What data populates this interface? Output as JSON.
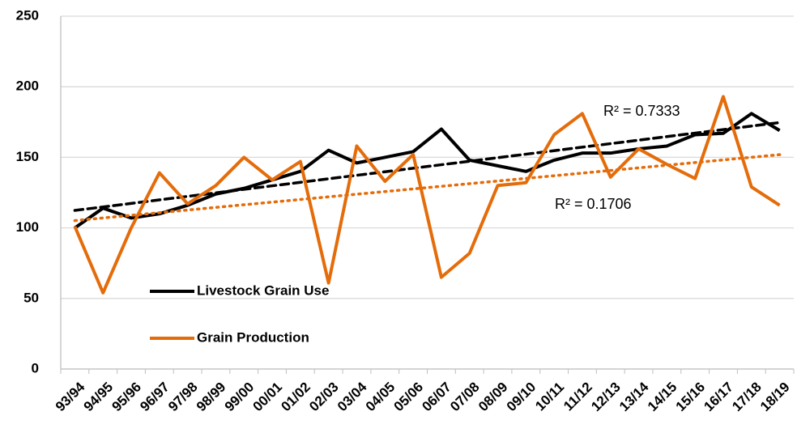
{
  "chart_data": {
    "type": "line",
    "categories": [
      "93/94",
      "94/95",
      "95/96",
      "96/97",
      "97/98",
      "98/99",
      "99/00",
      "00/01",
      "01/02",
      "02/03",
      "03/04",
      "04/05",
      "05/06",
      "06/07",
      "07/08",
      "08/09",
      "09/10",
      "10/11",
      "11/12",
      "12/13",
      "13/14",
      "14/15",
      "15/16",
      "16/17",
      "17/18",
      "18/19"
    ],
    "series": [
      {
        "name": "Livestock Grain Use",
        "color": "#000000",
        "values": [
          100,
          114,
          107,
          110,
          116,
          124,
          128,
          134,
          140,
          155,
          146,
          150,
          154,
          170,
          148,
          144,
          140,
          148,
          153,
          153,
          156,
          158,
          166,
          167,
          181,
          169
        ],
        "trendline": {
          "style": "dashed",
          "label": "R² = 0.7333"
        }
      },
      {
        "name": "Grain Production",
        "color": "#e46c0a",
        "values": [
          101,
          54,
          100,
          139,
          117,
          130,
          150,
          134,
          147,
          61,
          158,
          133,
          152,
          65,
          82,
          130,
          132,
          166,
          181,
          136,
          156,
          145,
          135,
          193,
          129,
          116
        ],
        "trendline": {
          "style": "dotted",
          "label": "R² = 0.1706"
        }
      }
    ],
    "ylim": [
      0,
      250
    ],
    "yticks": [
      0,
      50,
      100,
      150,
      200,
      250
    ],
    "grid": true,
    "legend": "left"
  }
}
